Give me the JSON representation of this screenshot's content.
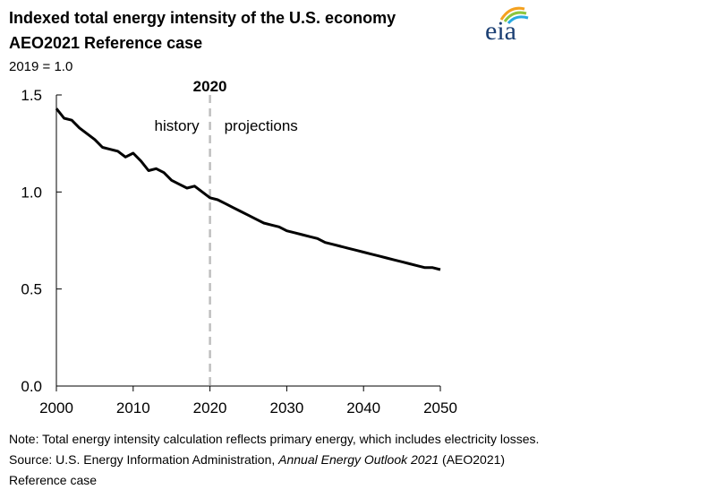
{
  "header": {
    "title_line1": "Indexed total energy intensity of the U.S. economy",
    "title_line2": "AEO2021 Reference case",
    "unit_label": "2019 = 1.0"
  },
  "logo": {
    "text": "eia",
    "icon": "eia-logo-icon"
  },
  "chart_data": {
    "type": "line",
    "title": "Indexed total energy intensity of the U.S. economy",
    "subtitle": "AEO2021 Reference case",
    "ylabel": "2019 = 1.0",
    "xlim": [
      2000,
      2050
    ],
    "ylim": [
      0,
      1.5
    ],
    "x_ticks": [
      2000,
      2010,
      2020,
      2030,
      2040,
      2050
    ],
    "x_tick_labels": [
      "2000",
      "2010",
      "2020",
      "2030",
      "2040",
      "2050"
    ],
    "y_ticks": [
      0,
      0.5,
      1.0,
      1.5
    ],
    "y_tick_labels": [
      "0.0",
      "0.5",
      "1.0",
      "1.5"
    ],
    "grid": false,
    "vline": {
      "x": 2020,
      "label": "2020",
      "style": "dashed",
      "color": "#bfbfbf"
    },
    "region_labels": {
      "left": "history",
      "right": "projections"
    },
    "series": [
      {
        "color": "#000000",
        "x": [
          2000,
          2001,
          2002,
          2003,
          2004,
          2005,
          2006,
          2007,
          2008,
          2009,
          2010,
          2011,
          2012,
          2013,
          2014,
          2015,
          2016,
          2017,
          2018,
          2019,
          2020,
          2021,
          2022,
          2023,
          2024,
          2025,
          2026,
          2027,
          2028,
          2029,
          2030,
          2031,
          2032,
          2033,
          2034,
          2035,
          2036,
          2037,
          2038,
          2039,
          2040,
          2041,
          2042,
          2043,
          2044,
          2045,
          2046,
          2047,
          2048,
          2049,
          2050
        ],
        "values": [
          1.43,
          1.38,
          1.37,
          1.33,
          1.3,
          1.27,
          1.23,
          1.22,
          1.21,
          1.18,
          1.2,
          1.16,
          1.11,
          1.12,
          1.1,
          1.06,
          1.04,
          1.02,
          1.03,
          1.0,
          0.97,
          0.96,
          0.94,
          0.92,
          0.9,
          0.88,
          0.86,
          0.84,
          0.83,
          0.82,
          0.8,
          0.79,
          0.78,
          0.77,
          0.76,
          0.74,
          0.73,
          0.72,
          0.71,
          0.7,
          0.69,
          0.68,
          0.67,
          0.66,
          0.65,
          0.64,
          0.63,
          0.62,
          0.61,
          0.61,
          0.6
        ]
      }
    ]
  },
  "notes": {
    "line1": "Note: Total energy intensity calculation reflects primary energy, which includes electricity losses.",
    "line2_prefix": "Source: U.S. Energy Information Administration, ",
    "line2_italic": "Annual Energy Outlook 2021",
    "line2_suffix": " (AEO2021)",
    "line3": "Reference case"
  }
}
